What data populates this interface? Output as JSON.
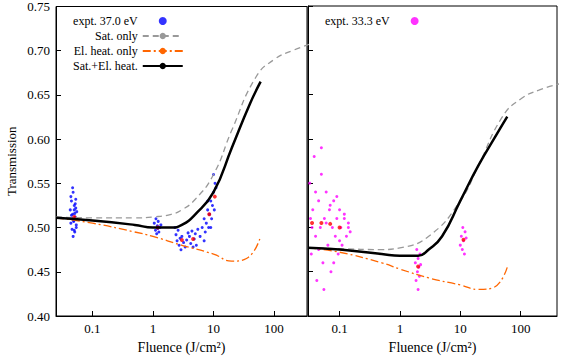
{
  "chart_data": [
    {
      "type": "scatter",
      "x_label": "Fluence (J/cm²)",
      "y_label": "Transmission",
      "log": "x",
      "legend": "upper left",
      "xlim": [
        0.025,
        350
      ],
      "ylim": [
        0.4,
        0.75
      ],
      "xticks": [
        0.1,
        1,
        10,
        100
      ],
      "yticks": [
        {
          "value": 0.4,
          "label": "0.40"
        },
        0.45,
        {
          "value": 0.5,
          "label": "0.50"
        },
        0.55,
        {
          "value": 0.6,
          "label": "0.60"
        },
        0.65,
        {
          "value": 0.7,
          "label": "0.70"
        },
        0.75
      ],
      "series": [
        {
          "name": "expt. 37.0 eV",
          "type": "scatter",
          "color": "#0000ff",
          "marker": "circle",
          "x": [
            0.043,
            0.044,
            0.045,
            0.046,
            0.047,
            0.048,
            0.049,
            0.05,
            0.051,
            0.052,
            0.053,
            0.054,
            0.055,
            0.044,
            0.046,
            0.048,
            0.05,
            0.052,
            0.054,
            0.045,
            0.047,
            0.049,
            0.051,
            0.053,
            0.05,
            1.05,
            1.1,
            1.12,
            1.15,
            1.18,
            1.2,
            1.22,
            1.25,
            1.3,
            1.35,
            2.3,
            2.4,
            2.5,
            2.6,
            2.7,
            2.8,
            2.9,
            3.0,
            3.2,
            3.4,
            3.6,
            3.8,
            4.0,
            4.2,
            4.4,
            4.6,
            4.8,
            5.0,
            5.2,
            5.5,
            6,
            6.5,
            7,
            7.3,
            7.6,
            8,
            8.3,
            8.6,
            9,
            9.3,
            9.6,
            10,
            10.3,
            10.6,
            11,
            7,
            8,
            9,
            10,
            8.5
          ],
          "values": [
            0.52,
            0.505,
            0.53,
            0.498,
            0.515,
            0.54,
            0.508,
            0.525,
            0.495,
            0.512,
            0.532,
            0.503,
            0.518,
            0.535,
            0.51,
            0.49,
            0.52,
            0.527,
            0.5,
            0.514,
            0.545,
            0.507,
            0.516,
            0.522,
            0.497,
            0.505,
            0.497,
            0.51,
            0.493,
            0.502,
            0.499,
            0.507,
            0.495,
            0.5,
            0.503,
            0.5,
            0.492,
            0.485,
            0.497,
            0.48,
            0.488,
            0.475,
            0.49,
            0.483,
            0.478,
            0.486,
            0.494,
            0.49,
            0.482,
            0.496,
            0.478,
            0.487,
            0.493,
            0.48,
            0.498,
            0.49,
            0.5,
            0.51,
            0.495,
            0.505,
            0.52,
            0.5,
            0.515,
            0.53,
            0.51,
            0.525,
            0.54,
            0.52,
            0.55,
            0.545,
            0.485,
            0.53,
            0.5,
            0.56,
            0.515
          ]
        },
        {
          "type": "scatter",
          "color": "#ff0000",
          "marker": "circle",
          "x": [
            0.05,
            1.2,
            3.0,
            4.6,
            8.5,
            10.5
          ],
          "values": [
            0.512,
            0.5,
            0.486,
            0.487,
            0.515,
            0.535
          ]
        },
        {
          "name": "Sat. only",
          "type": "line",
          "color": "#999999",
          "line_style": "dashed",
          "x": [
            0.025,
            0.1,
            0.5,
            1,
            2,
            3,
            5,
            10,
            20,
            50,
            100,
            200,
            500
          ],
          "values": [
            0.512,
            0.511,
            0.511,
            0.512,
            0.515,
            0.52,
            0.532,
            0.56,
            0.61,
            0.67,
            0.69,
            0.7,
            0.71
          ]
        },
        {
          "name": "El. heat. only",
          "type": "line",
          "color": "#ff6600",
          "line_style": "dashdot",
          "x": [
            0.025,
            0.1,
            0.5,
            1,
            3,
            10,
            20,
            35,
            60
          ],
          "values": [
            0.511,
            0.505,
            0.495,
            0.49,
            0.48,
            0.47,
            0.462,
            0.465,
            0.49
          ]
        },
        {
          "name": "Sat.+El. heat.",
          "type": "line",
          "color": "#000000",
          "line_style": "solid",
          "x": [
            0.025,
            0.1,
            0.5,
            1,
            2,
            3,
            5,
            10,
            20,
            40,
            60
          ],
          "values": [
            0.511,
            0.508,
            0.503,
            0.5,
            0.5,
            0.503,
            0.515,
            0.54,
            0.59,
            0.64,
            0.665
          ]
        }
      ]
    },
    {
      "type": "scatter",
      "x_label": "Fluence (J/cm²)",
      "log": "x",
      "legend": "upper left",
      "tick_labels": "x",
      "xlim": [
        0.03,
        400
      ],
      "ylim": [
        0.4,
        0.75
      ],
      "xticks": [
        0.1,
        1,
        10,
        100
      ],
      "yticks": [
        {
          "value": 0.4,
          "label": "0.40"
        },
        0.45,
        {
          "value": 0.5,
          "label": "0.50"
        },
        0.55,
        {
          "value": 0.6,
          "label": "0.60"
        },
        0.65,
        {
          "value": 0.7,
          "label": "0.70"
        },
        0.75
      ],
      "series": [
        {
          "name": "expt. 33.3 eV",
          "type": "scatter",
          "color": "#ff00ff",
          "marker": "circle",
          "x": [
            0.032,
            0.034,
            0.036,
            0.038,
            0.04,
            0.042,
            0.045,
            0.048,
            0.05,
            0.053,
            0.056,
            0.06,
            0.064,
            0.068,
            0.072,
            0.076,
            0.08,
            0.085,
            0.09,
            0.095,
            0.1,
            0.105,
            0.11,
            0.12,
            0.13,
            0.14,
            0.15,
            0.035,
            0.04,
            0.045,
            0.05,
            0.055,
            0.06,
            0.07,
            0.08,
            0.09,
            0.1,
            0.12,
            0.14,
            0.033,
            1.8,
            1.85,
            1.9,
            1.95,
            2.0,
            2.0,
            2.05,
            2.1,
            2.15,
            2.2,
            10,
            10.4,
            10.8,
            11,
            11.3,
            11.7,
            12,
            12.5
          ],
          "values": [
            0.55,
            0.47,
            0.52,
            0.58,
            0.49,
            0.44,
            0.53,
            0.5,
            0.56,
            0.46,
            0.51,
            0.54,
            0.48,
            0.52,
            0.45,
            0.5,
            0.53,
            0.49,
            0.51,
            0.47,
            0.52,
            0.5,
            0.48,
            0.51,
            0.49,
            0.5,
            0.495,
            0.5,
            0.54,
            0.475,
            0.59,
            0.43,
            0.505,
            0.525,
            0.46,
            0.535,
            0.485,
            0.515,
            0.505,
            0.51,
            0.46,
            0.44,
            0.475,
            0.45,
            0.43,
            0.465,
            0.455,
            0.445,
            0.47,
            0.458,
            0.48,
            0.49,
            0.475,
            0.5,
            0.485,
            0.47,
            0.495,
            0.488
          ]
        },
        {
          "type": "scatter",
          "color": "#ff0000",
          "marker": "circle",
          "x": [
            0.035,
            0.05,
            0.07,
            0.1,
            2.0,
            11.3
          ],
          "values": [
            0.505,
            0.505,
            0.504,
            0.5,
            0.456,
            0.486
          ]
        },
        {
          "type": "line",
          "color": "#999999",
          "line_style": "dashed",
          "x": [
            0.03,
            0.1,
            0.5,
            1,
            3,
            10,
            20,
            50,
            100,
            200,
            500
          ],
          "values": [
            0.477,
            0.476,
            0.475,
            0.477,
            0.49,
            0.53,
            0.57,
            0.625,
            0.645,
            0.655,
            0.663
          ]
        },
        {
          "type": "line",
          "color": "#ff6600",
          "line_style": "dashdot",
          "x": [
            0.03,
            0.1,
            0.5,
            1,
            3,
            10,
            20,
            35,
            60
          ],
          "values": [
            0.477,
            0.472,
            0.46,
            0.453,
            0.443,
            0.435,
            0.43,
            0.432,
            0.455
          ]
        },
        {
          "type": "line",
          "color": "#000000",
          "line_style": "solid",
          "x": [
            0.03,
            0.1,
            0.5,
            1,
            2,
            3,
            5,
            10,
            20,
            40,
            60
          ],
          "values": [
            0.477,
            0.475,
            0.47,
            0.468,
            0.468,
            0.475,
            0.49,
            0.53,
            0.57,
            0.605,
            0.625
          ]
        }
      ]
    }
  ]
}
